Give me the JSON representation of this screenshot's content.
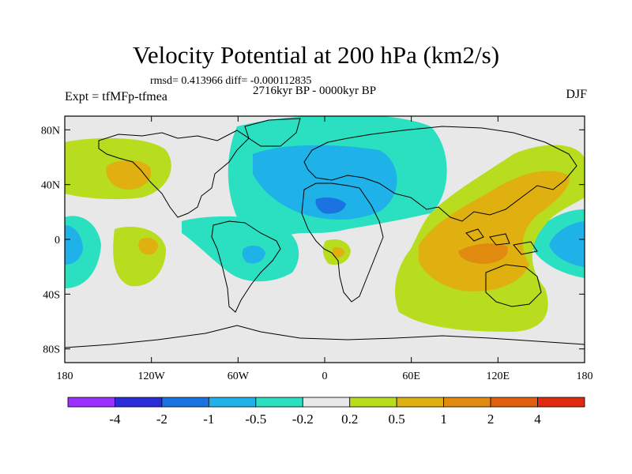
{
  "title": "Velocity Potential at 200 hPa (km2/s)",
  "stats_text": "rmsd= 0.413966 diff= -0.000112835",
  "period_text": "2716kyr BP - 0000kyr BP",
  "expt_text": "Expt = tfMFp-tfmea",
  "season_text": "DJF",
  "lon_ticks": [
    {
      "lon": -180,
      "label": "180"
    },
    {
      "lon": -120,
      "label": "120W"
    },
    {
      "lon": -60,
      "label": "60W"
    },
    {
      "lon": 0,
      "label": "0"
    },
    {
      "lon": 60,
      "label": "60E"
    },
    {
      "lon": 120,
      "label": "120E"
    },
    {
      "lon": 180,
      "label": "180"
    }
  ],
  "lat_ticks": [
    {
      "lat": 80,
      "label": "80N"
    },
    {
      "lat": 40,
      "label": "40N"
    },
    {
      "lat": 0,
      "label": "0"
    },
    {
      "lat": -40,
      "label": "40S"
    },
    {
      "lat": -80,
      "label": "80S"
    }
  ],
  "colorbar": {
    "colors": [
      "#9b30ff",
      "#2b2bd9",
      "#1a73e0",
      "#1fb2e8",
      "#2ae0c0",
      "#e8e8e8",
      "#b8dc1e",
      "#e0b010",
      "#e08a10",
      "#e06010",
      "#e02a10"
    ],
    "labels": [
      "-4",
      "-2",
      "-1",
      "-0.5",
      "-0.2",
      "0.2",
      "0.5",
      "1",
      "2",
      "4"
    ]
  }
}
